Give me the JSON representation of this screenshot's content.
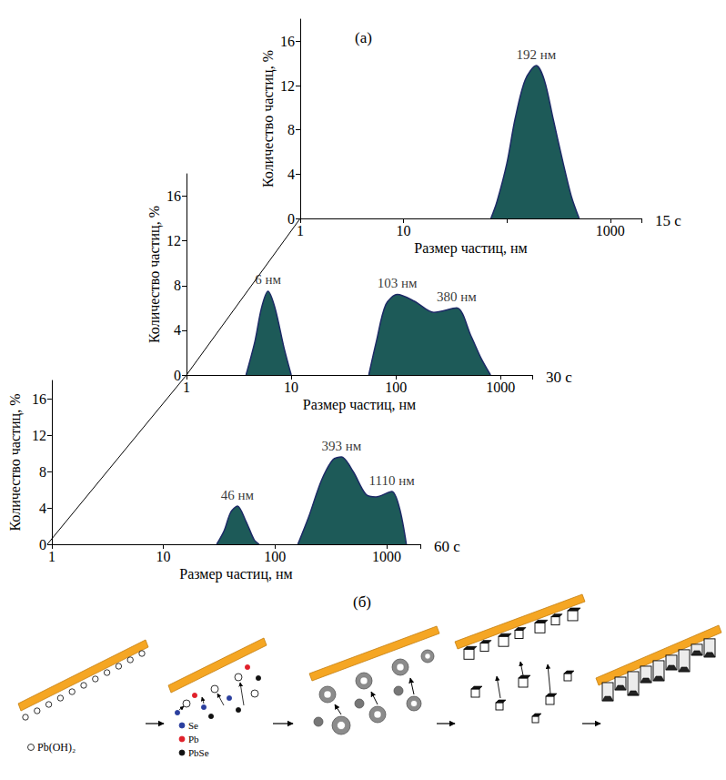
{
  "figure_labels": {
    "a": "(а)",
    "b": "(б)"
  },
  "chart_data": [
    {
      "type": "area",
      "title": "15 с",
      "x_label": "Размер частиц, нм",
      "y_label": "Количество частиц, %",
      "log": "x",
      "grid": false,
      "color": "#1d5a58",
      "xlim": [
        1,
        2000
      ],
      "xticks": [
        1,
        10,
        1000
      ],
      "ylim": [
        0,
        18
      ],
      "yticks": [
        0,
        4,
        8,
        12,
        16
      ],
      "x": [
        70,
        80,
        100,
        120,
        150,
        192,
        230,
        280,
        350,
        420,
        500
      ],
      "values": [
        0,
        1.5,
        5,
        9,
        12.5,
        13.8,
        12.5,
        9,
        5,
        2,
        0
      ],
      "annotations": [
        {
          "x": 192,
          "y": 13.8,
          "text": "192 нм"
        }
      ]
    },
    {
      "type": "area",
      "title": "30 с",
      "x_label": "Размер частиц, нм",
      "y_label": "Количество частиц, %",
      "log": "x",
      "grid": false,
      "color": "#1d5a58",
      "xlim": [
        1,
        2000
      ],
      "xticks": [
        1,
        10,
        100,
        1000
      ],
      "ylim": [
        0,
        18
      ],
      "yticks": [
        0,
        4,
        8,
        12,
        16
      ],
      "x": [
        3.7,
        4.5,
        5.2,
        6,
        7,
        8.5,
        10,
        20,
        55,
        65,
        80,
        103,
        150,
        230,
        380,
        520,
        650,
        800
      ],
      "values": [
        0,
        3,
        6,
        7.5,
        6,
        2.5,
        0,
        null,
        0,
        3,
        6.3,
        7.2,
        6.6,
        5.6,
        6.0,
        3.5,
        1.5,
        0
      ],
      "annotations": [
        {
          "x": 6,
          "y": 7.5,
          "text": "6 нм"
        },
        {
          "x": 103,
          "y": 7.2,
          "text": "103 нм"
        },
        {
          "x": 380,
          "y": 6.0,
          "text": "380 нм"
        }
      ]
    },
    {
      "type": "area",
      "title": "60 с",
      "x_label": "Размер частиц, нм",
      "y_label": "Количество частиц, %",
      "log": "x",
      "grid": false,
      "color": "#1d5a58",
      "xlim": [
        1,
        2000
      ],
      "xticks": [
        1,
        10,
        100,
        1000
      ],
      "ylim": [
        0,
        18
      ],
      "yticks": [
        0,
        4,
        8,
        12,
        16
      ],
      "x": [
        30,
        35,
        40,
        46,
        55,
        65,
        72,
        110,
        160,
        200,
        260,
        330,
        393,
        500,
        650,
        800,
        1110,
        1300,
        1500
      ],
      "values": [
        0,
        1.5,
        3.5,
        4.2,
        2.5,
        0.5,
        0,
        null,
        0,
        3,
        7,
        9.3,
        9.6,
        8,
        5.5,
        5.2,
        5.8,
        4,
        0
      ],
      "annotations": [
        {
          "x": 46,
          "y": 4.2,
          "text": "46 нм"
        },
        {
          "x": 393,
          "y": 9.6,
          "text": "393 нм"
        },
        {
          "x": 1110,
          "y": 5.8,
          "text": "1110 нм"
        }
      ]
    }
  ],
  "diagram": {
    "legend": [
      {
        "label": "Pb(OH)₂",
        "marker": "ring",
        "color": "#ffffff"
      },
      {
        "label": "Se",
        "marker": "dot",
        "color": "#2b3f9e"
      },
      {
        "label": "Pb",
        "marker": "dot",
        "color": "#e0202a"
      },
      {
        "label": "PbSe",
        "marker": "dot",
        "color": "#111111"
      }
    ]
  }
}
